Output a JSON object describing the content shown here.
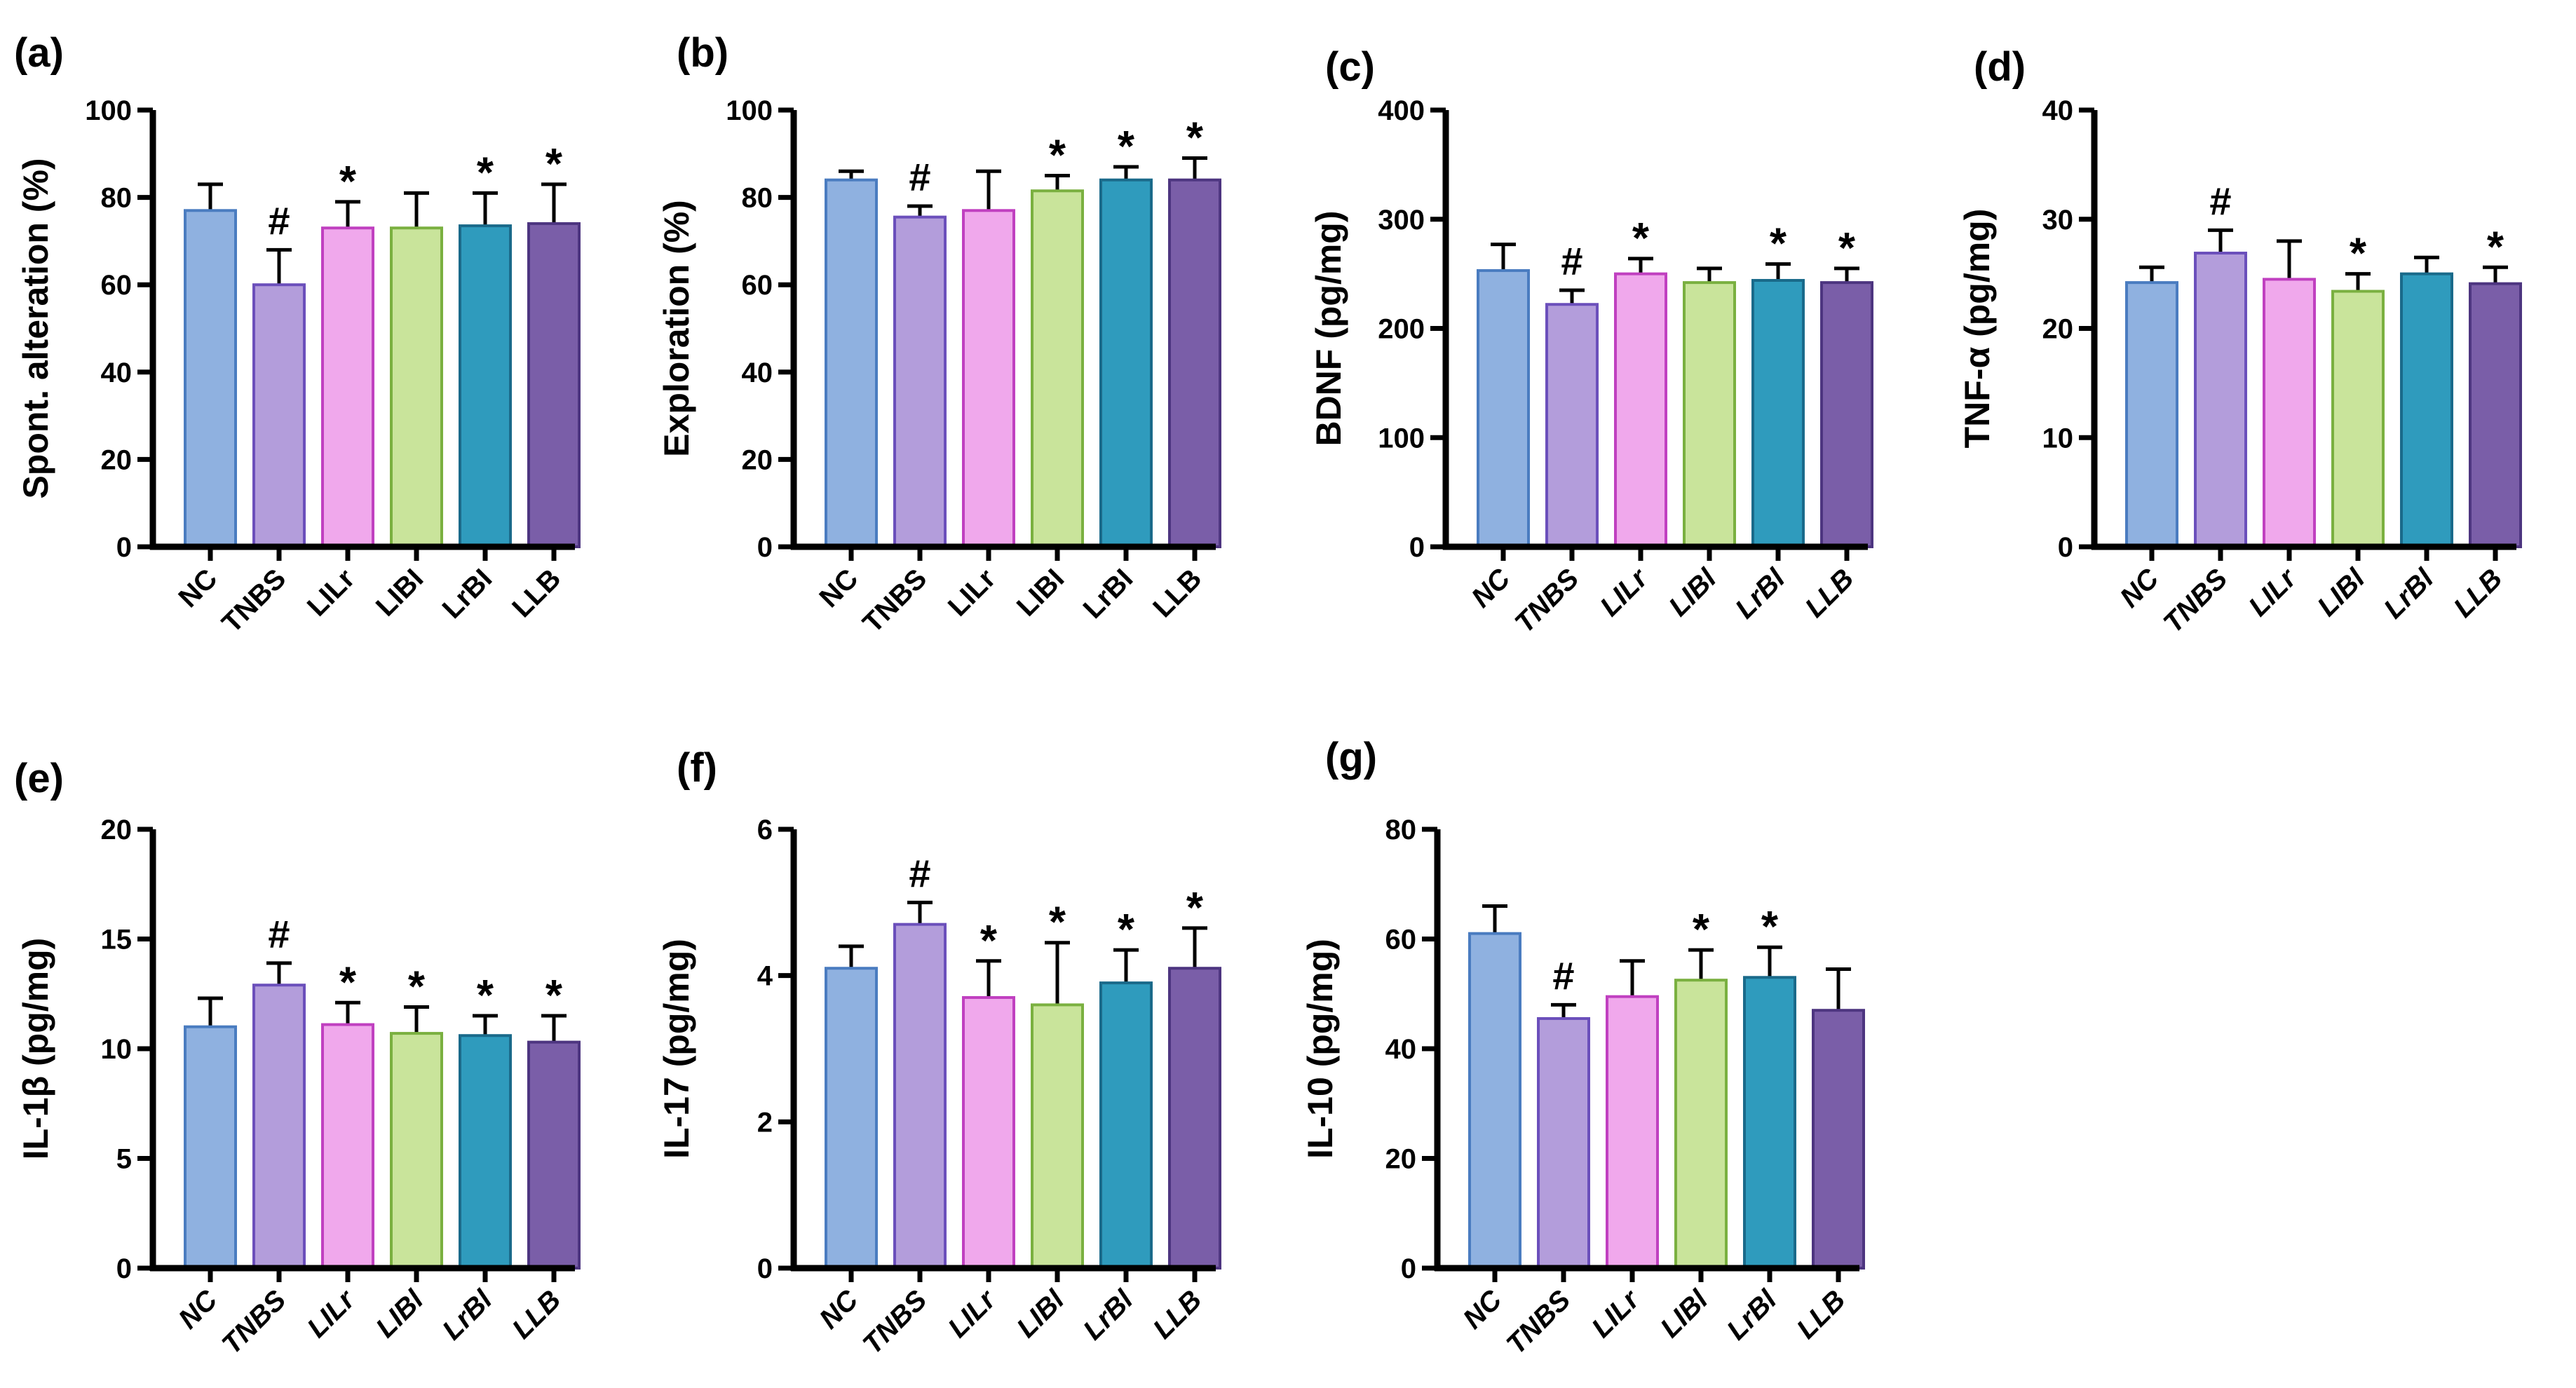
{
  "groups": [
    "NC",
    "TNBS",
    "LILr",
    "LIBI",
    "LrBI",
    "LLB"
  ],
  "group_labels_display": [
    "NC",
    "TNBS",
    "LILr",
    "LIBl",
    "LrBl",
    "LLB"
  ],
  "colors": {
    "fill": [
      "#8fb1e0",
      "#b39ddb",
      "#f0a8ec",
      "#c9e49b",
      "#2f9bbd",
      "#7a5ea8"
    ],
    "stroke": [
      "#4a7cc0",
      "#6b4fbb",
      "#c040c0",
      "#7ab040",
      "#1a6a8a",
      "#4d3580"
    ]
  },
  "chart_data": [
    {
      "panel": "(a)",
      "type": "bar",
      "ylabel": "Spont. alteration (%)",
      "ylim": [
        0,
        100
      ],
      "ticks": [
        0,
        20,
        40,
        60,
        80,
        100
      ],
      "categories": [
        "NC",
        "TNBS",
        "LILr",
        "LIBl",
        "LrBl",
        "LLB"
      ],
      "values": [
        77,
        60,
        73,
        73,
        73.5,
        74
      ],
      "error_upper": [
        83,
        68,
        79,
        81,
        81,
        83
      ],
      "markers": [
        "",
        "#",
        "*",
        "",
        "*",
        "*"
      ]
    },
    {
      "panel": "(b)",
      "type": "bar",
      "ylabel": "Exploration (%)",
      "ylim": [
        0,
        100
      ],
      "ticks": [
        0,
        20,
        40,
        60,
        80,
        100
      ],
      "categories": [
        "NC",
        "TNBS",
        "LILr",
        "LIBl",
        "LrBl",
        "LLB"
      ],
      "values": [
        84,
        75.5,
        77,
        81.5,
        84,
        84
      ],
      "error_upper": [
        86,
        78,
        86,
        85,
        87,
        89
      ],
      "markers": [
        "",
        "#",
        "",
        "*",
        "*",
        "*"
      ]
    },
    {
      "panel": "(c)",
      "type": "bar",
      "ylabel": "BDNF (pg/mg)",
      "ylim": [
        0,
        400
      ],
      "ticks": [
        0,
        100,
        200,
        300,
        400
      ],
      "categories": [
        "NC",
        "TNBS",
        "LILr",
        "LIBl",
        "LrBl",
        "LLB"
      ],
      "values": [
        253,
        222,
        250,
        242,
        244,
        242
      ],
      "error_upper": [
        277,
        235,
        264,
        255,
        259,
        255
      ],
      "markers": [
        "",
        "#",
        "*",
        "",
        "*",
        "*"
      ]
    },
    {
      "panel": "(d)",
      "type": "bar",
      "ylabel": "TNF-α (pg/mg)",
      "ylim": [
        0,
        40
      ],
      "ticks": [
        0,
        10,
        20,
        30,
        40
      ],
      "categories": [
        "NC",
        "TNBS",
        "LILr",
        "LIBl",
        "LrBl",
        "LLB"
      ],
      "values": [
        24.2,
        26.9,
        24.5,
        23.4,
        25,
        24.1
      ],
      "error_upper": [
        25.6,
        29,
        28,
        25,
        26.5,
        25.6
      ],
      "markers": [
        "",
        "#",
        "",
        "*",
        "",
        "*"
      ]
    },
    {
      "panel": "(e)",
      "type": "bar",
      "ylabel": "IL-1β (pg/mg)",
      "ylim": [
        0,
        20
      ],
      "ticks": [
        0,
        5,
        10,
        15,
        20
      ],
      "categories": [
        "NC",
        "TNBS",
        "LILr",
        "LIBl",
        "LrBl",
        "LLB"
      ],
      "values": [
        11,
        12.9,
        11.1,
        10.7,
        10.6,
        10.3
      ],
      "error_upper": [
        12.3,
        13.9,
        12.1,
        11.9,
        11.5,
        11.5
      ],
      "markers": [
        "",
        "#",
        "*",
        "*",
        "*",
        "*"
      ]
    },
    {
      "panel": "(f)",
      "type": "bar",
      "ylabel": "IL-17 (pg/mg)",
      "ylim": [
        0,
        6
      ],
      "ticks": [
        0,
        2,
        4,
        6
      ],
      "categories": [
        "NC",
        "TNBS",
        "LILr",
        "LIBl",
        "LrBl",
        "LLB"
      ],
      "values": [
        4.1,
        4.7,
        3.7,
        3.6,
        3.9,
        4.1
      ],
      "error_upper": [
        4.4,
        5.0,
        4.2,
        4.45,
        4.35,
        4.65
      ],
      "markers": [
        "",
        "#",
        "*",
        "*",
        "*",
        "*"
      ]
    },
    {
      "panel": "(g)",
      "type": "bar",
      "ylabel": "IL-10 (pg/mg)",
      "ylim": [
        0,
        80
      ],
      "ticks": [
        0,
        20,
        40,
        60,
        80
      ],
      "categories": [
        "NC",
        "TNBS",
        "LILr",
        "LIBl",
        "LrBl",
        "LLB"
      ],
      "values": [
        61,
        45.5,
        49.5,
        52.5,
        53,
        47
      ],
      "error_upper": [
        66,
        48,
        56,
        58,
        58.5,
        54.5
      ],
      "markers": [
        "",
        "#",
        "",
        "*",
        "*",
        ""
      ]
    }
  ]
}
